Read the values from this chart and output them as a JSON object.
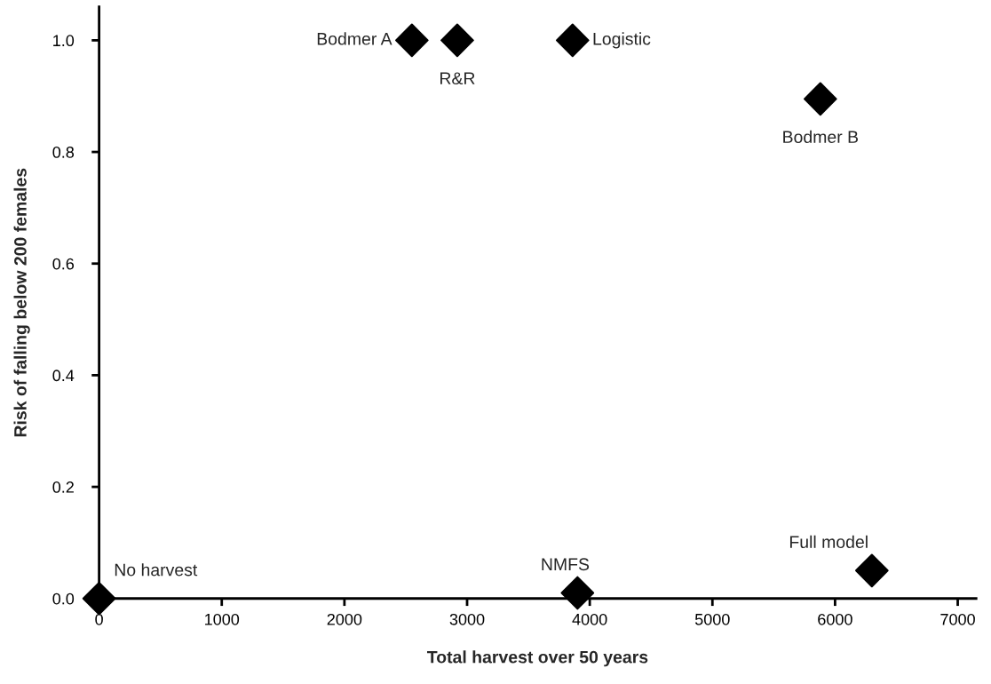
{
  "chart_data": {
    "type": "scatter",
    "xlabel": "Total harvest over 50 years",
    "ylabel": "Risk of falling below 200 females",
    "x": [
      0,
      2550,
      2920,
      3860,
      5880,
      3900,
      6300
    ],
    "values": [
      0,
      1.0,
      1.0,
      1.0,
      0.895,
      0.01,
      0.05
    ],
    "color": "#000000",
    "marker": "diamond",
    "xlim": [
      0,
      7150
    ],
    "ylim": [
      0,
      1.06
    ],
    "xticks": [
      0,
      1000,
      2000,
      3000,
      4000,
      5000,
      6000,
      7000
    ],
    "yticks": [
      {
        "value": 0,
        "label": "0.0"
      },
      {
        "value": 0.2,
        "label": "0.2"
      },
      {
        "value": 0.4,
        "label": "0.4"
      },
      {
        "value": 0.6,
        "label": "0.6"
      },
      {
        "value": 0.8,
        "label": "0.8"
      },
      {
        "value": 1.0,
        "label": "1.0"
      }
    ],
    "grid": false,
    "annotations": [
      {
        "text": "No harvest",
        "x": 0,
        "y": 0
      },
      {
        "text": "Bodmer A",
        "x": 2550,
        "y": 1.0
      },
      {
        "text": "R&R",
        "x": 2920,
        "y": 1.0
      },
      {
        "text": "Logistic",
        "x": 3860,
        "y": 1.0
      },
      {
        "text": "Bodmer B",
        "x": 5880,
        "y": 0.895
      },
      {
        "text": "NMFS",
        "x": 3900,
        "y": 0.01
      },
      {
        "text": "Full model",
        "x": 6300,
        "y": 0.05
      }
    ]
  }
}
